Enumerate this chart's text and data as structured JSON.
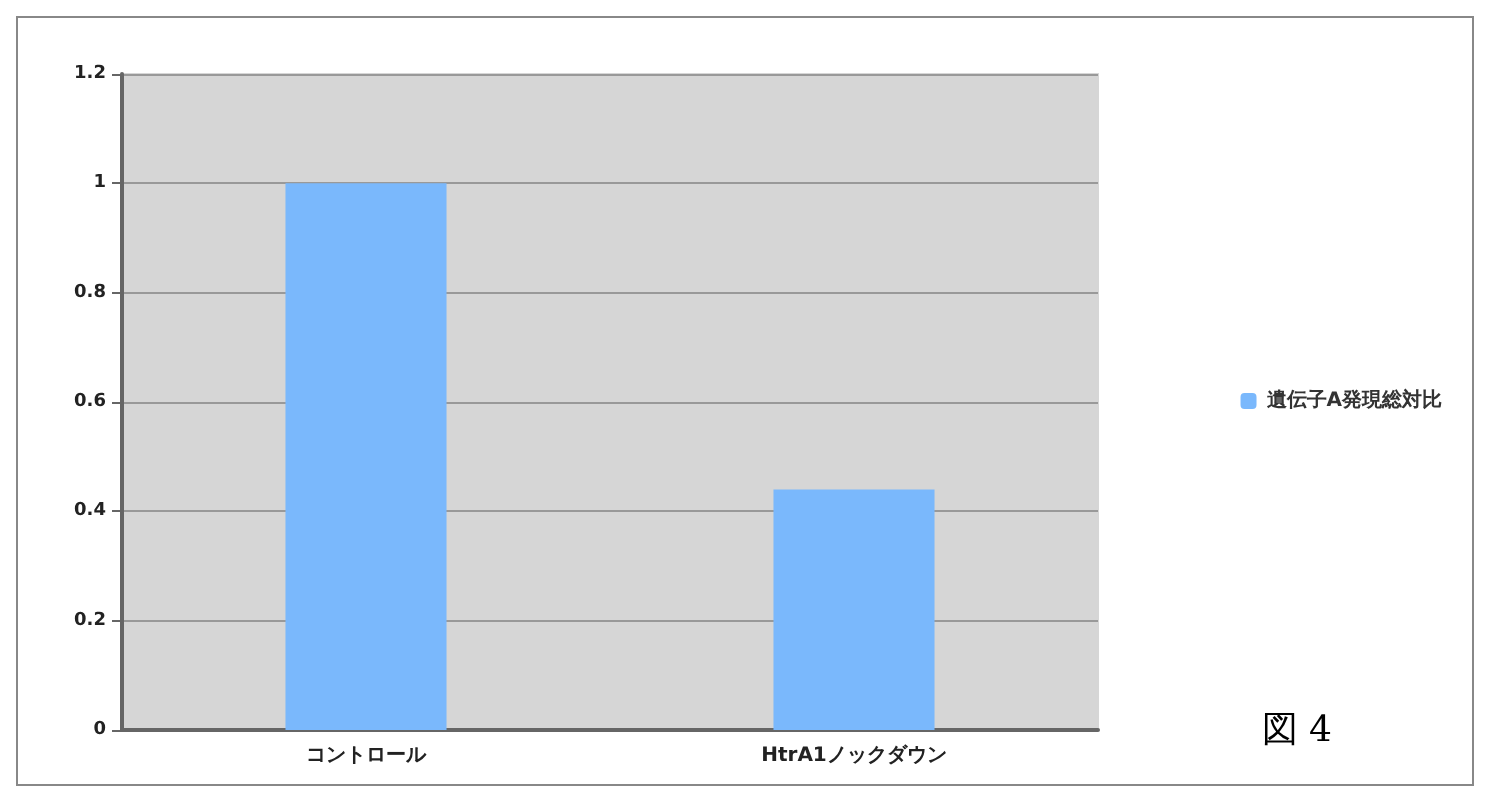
{
  "chart_data": {
    "type": "bar",
    "categories": [
      "コントロール",
      "HtrA1ノックダウン"
    ],
    "series": [
      {
        "name": "遺伝子A発現総対比",
        "color": "#7ab8fc",
        "values": [
          1,
          0.44
        ]
      }
    ],
    "ylim": [
      0,
      1.2
    ],
    "yticks": [
      0,
      0.2,
      0.4,
      0.6,
      0.8,
      1,
      1.2
    ],
    "grid": "y",
    "legend": "right",
    "annotations": [
      "図 4"
    ]
  }
}
